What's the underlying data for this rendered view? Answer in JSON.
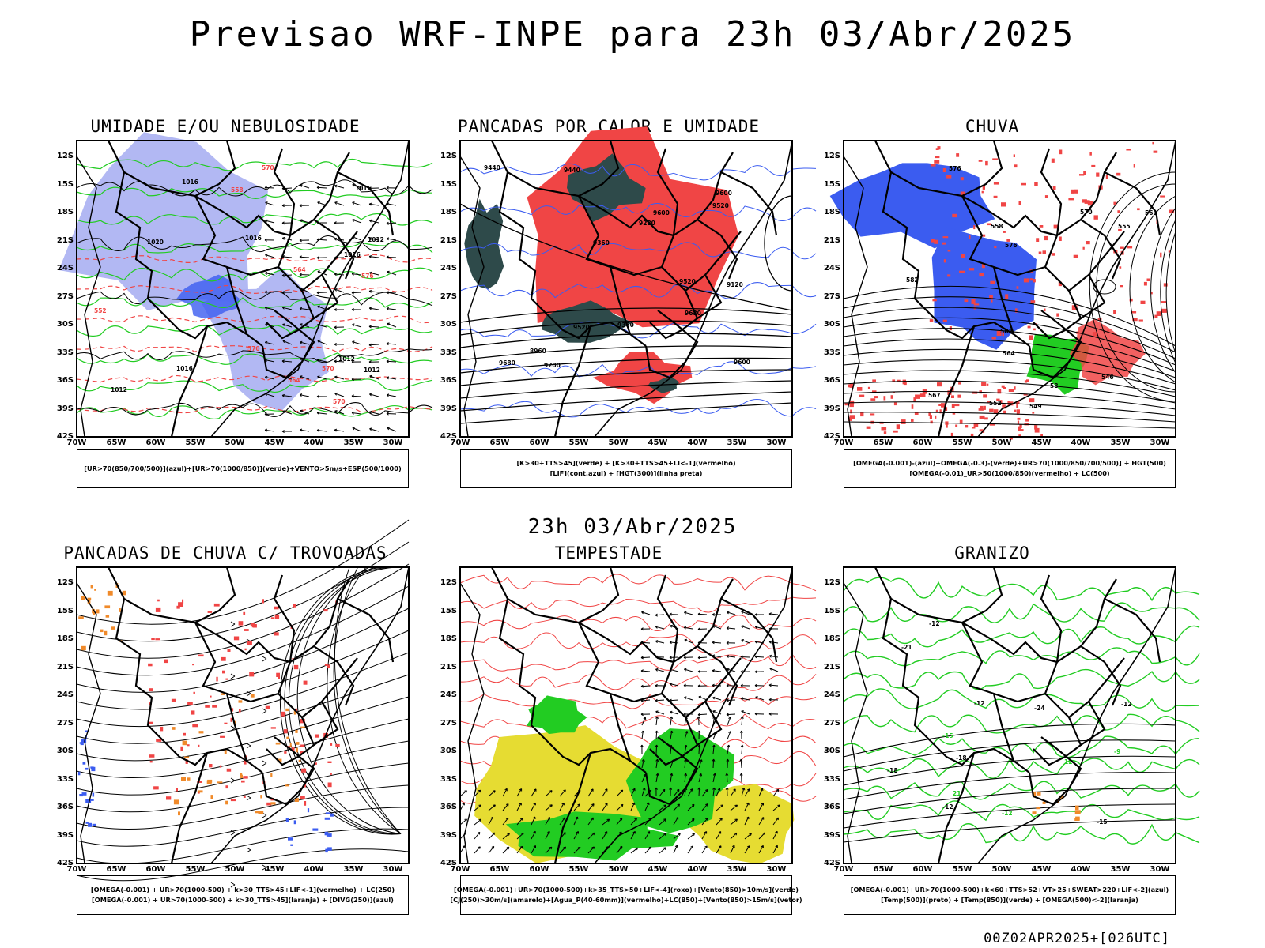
{
  "title": "Previsao WRF-INPE  para 23h 03/Abr/2025",
  "subtitle": "23h 03/Abr/2025",
  "footer": "00Z02APR2025+[026UTC]",
  "axes": {
    "lat_labels": [
      "12S",
      "15S",
      "18S",
      "21S",
      "24S",
      "27S",
      "30S",
      "33S",
      "36S",
      "39S",
      "42S"
    ],
    "lon_labels": [
      "70W",
      "65W",
      "60W",
      "55W",
      "50W",
      "45W",
      "40W",
      "35W",
      "30W"
    ]
  },
  "colors": {
    "blue": "#3b5cf0",
    "light_blue": "#aab0f2",
    "red": "#f04545",
    "green": "#22cc22",
    "dark_teal": "#2e4a4a",
    "yellow": "#e6dc32",
    "orange": "#f08a2a"
  },
  "panels": [
    {
      "title": "UMIDADE E/OU NEBULOSIDADE",
      "legend": [
        "[UR>70(850/700/500)](azul)+[UR>70(1000/850)](verde)+VENTO>5m/s+ESP(500/1000)"
      ],
      "labels": [
        "1012",
        "1012",
        "1012",
        "1016",
        "1012",
        "1016",
        "1016",
        "1016",
        "1016",
        "1020",
        "576",
        "570",
        "570",
        "570",
        "564",
        "558",
        "552",
        "564",
        "570"
      ]
    },
    {
      "title": "PANCADAS POR CALOR E UMIDADE",
      "legend": [
        "[K>30+TTS>45](verde) + [K>30+TTS>45+LI<-1](vermelho)",
        "[LIF](cont.azul) + [HGT(300)](linha preta)"
      ],
      "labels": [
        "9680",
        "9680",
        "9600",
        "9520",
        "9600",
        "9520",
        "9440",
        "9360",
        "9280",
        "9200",
        "9120",
        "8960",
        "9600",
        "9520",
        "9440",
        "9360"
      ]
    },
    {
      "title": "CHUVA",
      "legend": [
        "[OMEGA(-0.001)-(azul)+OMEGA(-0.3)-(verde)+UR>70(1000/850/700/500)] + HGT(500)",
        "[OMEGA(-0.01)_UR>50(1000/850)(vermelho) + LC(500)"
      ],
      "labels": [
        "582",
        "576",
        "576",
        "570",
        "564",
        "561",
        "558",
        "555",
        "552",
        "549",
        "546",
        "567",
        "582",
        "58"
      ]
    },
    {
      "title": "PANCADAS DE CHUVA C/ TROVOADAS",
      "legend": [
        "[OMEGA(-0.001) + UR>70(1000-500) + k>30_TTS>45+LIF<-1](vermelho) + LC(250)",
        "[OMEGA(-0.001) + UR>70(1000-500) + k>30_TTS>45](laranja) + [DIVG(250)](azul)"
      ],
      "labels": []
    },
    {
      "title": "TEMPESTADE",
      "legend": [
        "[OMEGA(-0.001)+UR>70(1000-500)+k>35_TTS>50+LIF<-4](roxo)+[Vento(850)>10m/s](verde)",
        "[CJ(250)>30m/s](amarelo)+[Agua_P(40-60mm)](vermelho)+LC(850)+[Vento(850)>15m/s](vetor)"
      ],
      "labels": []
    },
    {
      "title": "GRANIZO",
      "legend": [
        "[OMEGA(-0.001)+UR>70(1000-500)+k<60+TTS>52+VT>25+SWEAT>220+LIF<-2](azul)",
        "[Temp(500)](preto) + [Temp(850)](verde) + [OMEGA(500)<-2](laranja)"
      ],
      "labels": [
        "-12",
        "-12",
        "-12",
        "-15",
        "-18",
        "-21",
        "-24",
        "-12",
        "-18",
        "21",
        "-12",
        "-15",
        "-9",
        "12"
      ]
    }
  ]
}
